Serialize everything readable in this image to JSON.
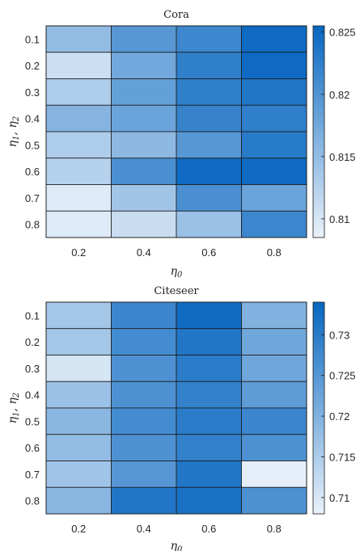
{
  "chart_data": [
    {
      "type": "heatmap",
      "title": "Cora",
      "xlabel": "η0",
      "ylabel": "η1, η2",
      "x_categories": [
        "0.2",
        "0.4",
        "0.6",
        "0.8"
      ],
      "y_categories": [
        "0.1",
        "0.2",
        "0.3",
        "0.4",
        "0.5",
        "0.6",
        "0.7",
        "0.8"
      ],
      "values": [
        [
          0.815,
          0.8195,
          0.8215,
          0.825
        ],
        [
          0.8108,
          0.8175,
          0.8225,
          0.825
        ],
        [
          0.813,
          0.8185,
          0.8225,
          0.8235
        ],
        [
          0.816,
          0.818,
          0.822,
          0.8225
        ],
        [
          0.813,
          0.8155,
          0.8195,
          0.823
        ],
        [
          0.8125,
          0.8205,
          0.825,
          0.825
        ],
        [
          0.8095,
          0.814,
          0.8205,
          0.818
        ],
        [
          0.8095,
          0.811,
          0.8145,
          0.8215
        ]
      ],
      "colorbar": {
        "range": [
          0.8085,
          0.8255
        ],
        "ticks": [
          "0.81",
          "0.815",
          "0.82",
          "0.825"
        ]
      },
      "colormap": {
        "low": "#eaf2fa",
        "high": "#0766c0"
      },
      "grid": true
    },
    {
      "type": "heatmap",
      "title": "Citeseer",
      "xlabel": "η0",
      "ylabel": "η1, η2",
      "x_categories": [
        "0.2",
        "0.4",
        "0.6",
        "0.8"
      ],
      "y_categories": [
        "0.1",
        "0.2",
        "0.3",
        "0.4",
        "0.5",
        "0.6",
        "0.7",
        "0.8"
      ],
      "values": [
        [
          0.716,
          0.728,
          0.733,
          0.72
        ],
        [
          0.716,
          0.727,
          0.731,
          0.722
        ],
        [
          0.7105,
          0.726,
          0.73,
          0.722
        ],
        [
          0.717,
          0.726,
          0.729,
          0.724
        ],
        [
          0.719,
          0.727,
          0.73,
          0.728
        ],
        [
          0.718,
          0.726,
          0.729,
          0.726
        ],
        [
          0.7165,
          0.725,
          0.731,
          0.7085
        ],
        [
          0.719,
          0.731,
          0.732,
          0.726
        ]
      ],
      "colorbar": {
        "range": [
          0.708,
          0.734
        ],
        "ticks": [
          "0.71",
          "0.715",
          "0.72",
          "0.725",
          "0.73"
        ]
      },
      "colormap": {
        "low": "#eaf2fa",
        "high": "#0766c0"
      },
      "grid": true
    }
  ]
}
